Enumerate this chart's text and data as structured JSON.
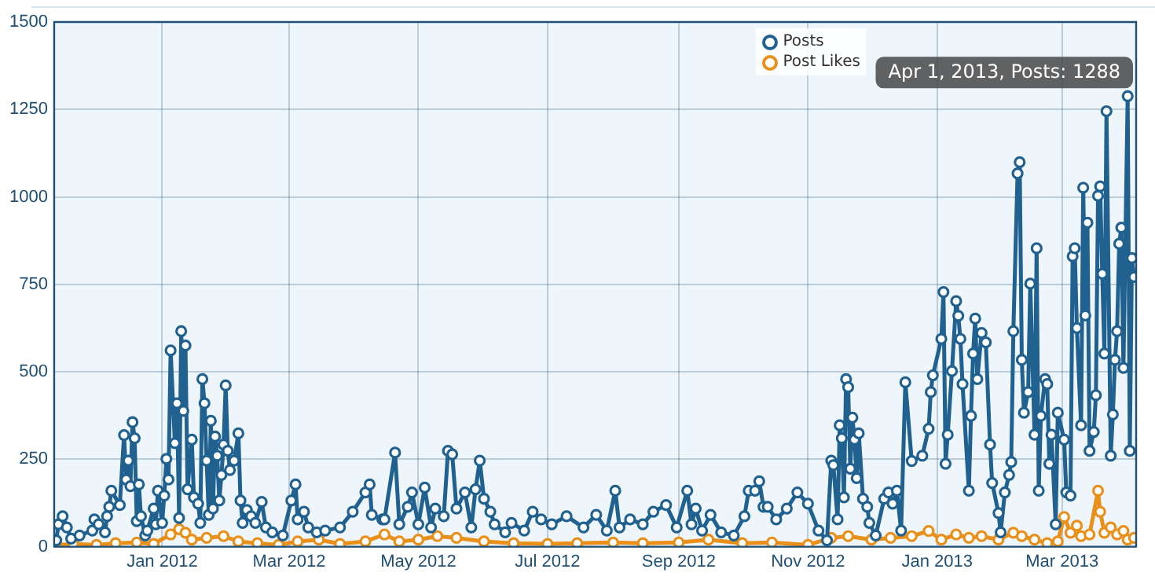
{
  "chart_data": {
    "type": "line",
    "xlim": [
      "2011-11-11",
      "2013-04-05"
    ],
    "xticks": [
      {
        "value": "2012-01-01",
        "label": "Jan 2012"
      },
      {
        "value": "2012-03-01",
        "label": "Mar 2012"
      },
      {
        "value": "2012-05-01",
        "label": "May 2012"
      },
      {
        "value": "2012-07-01",
        "label": "Jul 2012"
      },
      {
        "value": "2012-09-01",
        "label": "Sep 2012"
      },
      {
        "value": "2012-11-01",
        "label": "Nov 2012"
      },
      {
        "value": "2013-01-01",
        "label": "Jan 2013"
      },
      {
        "value": "2013-03-01",
        "label": "Mar 2013"
      }
    ],
    "ylim": [
      0,
      1500
    ],
    "yticks": [
      0,
      250,
      500,
      750,
      1000,
      1250,
      1500
    ],
    "grid": true,
    "legend": "top right",
    "marker": "circle",
    "annotations": [
      {
        "text": "Apr 1, 2013, Posts: 1288",
        "x": "2013-04-01",
        "y": 1288
      }
    ],
    "series": [
      {
        "name": "Posts",
        "color": "#21618f",
        "x": [
          "2011-11-12",
          "2011-11-13",
          "2011-11-15",
          "2011-11-17",
          "2011-11-19",
          "2011-11-23",
          "2011-11-29",
          "2011-11-30",
          "2011-12-02",
          "2011-12-05",
          "2011-12-06",
          "2011-12-07",
          "2011-12-08",
          "2011-12-12",
          "2011-12-14",
          "2011-12-15",
          "2011-12-16",
          "2011-12-17",
          "2011-12-18",
          "2011-12-19",
          "2011-12-20",
          "2011-12-21",
          "2011-12-22",
          "2011-12-24",
          "2011-12-25",
          "2011-12-28",
          "2011-12-29",
          "2011-12-30",
          "2012-01-01",
          "2012-01-02",
          "2012-01-03",
          "2012-01-04",
          "2012-01-05",
          "2012-01-07",
          "2012-01-08",
          "2012-01-09",
          "2012-01-10",
          "2012-01-11",
          "2012-01-12",
          "2012-01-13",
          "2012-01-15",
          "2012-01-16",
          "2012-01-18",
          "2012-01-19",
          "2012-01-20",
          "2012-01-21",
          "2012-01-22",
          "2012-01-23",
          "2012-01-24",
          "2012-01-25",
          "2012-01-26",
          "2012-01-27",
          "2012-01-28",
          "2012-01-29",
          "2012-01-30",
          "2012-01-31",
          "2012-02-01",
          "2012-02-02",
          "2012-02-04",
          "2012-02-06",
          "2012-02-07",
          "2012-02-08",
          "2012-02-10",
          "2012-02-12",
          "2012-02-14",
          "2012-02-17",
          "2012-02-19",
          "2012-02-22",
          "2012-02-27",
          "2012-03-02",
          "2012-03-04",
          "2012-03-05",
          "2012-03-08",
          "2012-03-10",
          "2012-03-14",
          "2012-03-18",
          "2012-03-25",
          "2012-03-31",
          "2012-04-06",
          "2012-04-08",
          "2012-04-09",
          "2012-04-14",
          "2012-04-15",
          "2012-04-20",
          "2012-04-22",
          "2012-04-26",
          "2012-04-28",
          "2012-05-01",
          "2012-05-04",
          "2012-05-07",
          "2012-05-09",
          "2012-05-13",
          "2012-05-15",
          "2012-05-17",
          "2012-05-19",
          "2012-05-23",
          "2012-05-26",
          "2012-05-28",
          "2012-05-30",
          "2012-06-01",
          "2012-06-04",
          "2012-06-06",
          "2012-06-11",
          "2012-06-14",
          "2012-06-20",
          "2012-06-24",
          "2012-06-28",
          "2012-07-03",
          "2012-07-10",
          "2012-07-18",
          "2012-07-24",
          "2012-07-29",
          "2012-08-02",
          "2012-08-04",
          "2012-08-09",
          "2012-08-15",
          "2012-08-20",
          "2012-08-26",
          "2012-08-31",
          "2012-09-05",
          "2012-09-07",
          "2012-09-09",
          "2012-09-12",
          "2012-09-16",
          "2012-09-21",
          "2012-09-27",
          "2012-10-02",
          "2012-10-04",
          "2012-10-07",
          "2012-10-09",
          "2012-10-11",
          "2012-10-13",
          "2012-10-17",
          "2012-10-22",
          "2012-10-27",
          "2012-11-01",
          "2012-11-06",
          "2012-11-10",
          "2012-11-12",
          "2012-11-13",
          "2012-11-15",
          "2012-11-16",
          "2012-11-17",
          "2012-11-18",
          "2012-11-19",
          "2012-11-20",
          "2012-11-21",
          "2012-11-22",
          "2012-11-23",
          "2012-11-24",
          "2012-11-25",
          "2012-11-27",
          "2012-11-29",
          "2012-11-30",
          "2012-12-03",
          "2012-12-07",
          "2012-12-09",
          "2012-12-11",
          "2012-12-13",
          "2012-12-15",
          "2012-12-17",
          "2012-12-20",
          "2012-12-25",
          "2012-12-28",
          "2012-12-29",
          "2012-12-30",
          "2013-01-03",
          "2013-01-04",
          "2013-01-05",
          "2013-01-06",
          "2013-01-08",
          "2013-01-10",
          "2013-01-11",
          "2013-01-12",
          "2013-01-13",
          "2013-01-16",
          "2013-01-17",
          "2013-01-18",
          "2013-01-19",
          "2013-01-20",
          "2013-01-22",
          "2013-01-24",
          "2013-01-26",
          "2013-01-27",
          "2013-01-30",
          "2013-01-31",
          "2013-02-02",
          "2013-02-04",
          "2013-02-05",
          "2013-02-06",
          "2013-02-08",
          "2013-02-09",
          "2013-02-10",
          "2013-02-11",
          "2013-02-13",
          "2013-02-14",
          "2013-02-16",
          "2013-02-17",
          "2013-02-18",
          "2013-02-19",
          "2013-02-21",
          "2013-02-22",
          "2013-02-23",
          "2013-02-24",
          "2013-02-26",
          "2013-02-27",
          "2013-03-02",
          "2013-03-03",
          "2013-03-05",
          "2013-03-06",
          "2013-03-07",
          "2013-03-08",
          "2013-03-10",
          "2013-03-11",
          "2013-03-12",
          "2013-03-13",
          "2013-03-14",
          "2013-03-16",
          "2013-03-17",
          "2013-03-18",
          "2013-03-19",
          "2013-03-20",
          "2013-03-21",
          "2013-03-22",
          "2013-03-24",
          "2013-03-25",
          "2013-03-26",
          "2013-03-27",
          "2013-03-28",
          "2013-03-29",
          "2013-03-30",
          "2013-04-01",
          "2013-04-02",
          "2013-04-03",
          "2013-04-04"
        ],
        "values": [
          18,
          64,
          87,
          55,
          23,
          32,
          46,
          78,
          64,
          41,
          87,
          114,
          160,
          119,
          319,
          192,
          246,
          173,
          356,
          310,
          73,
          178,
          87,
          32,
          46,
          109,
          64,
          160,
          68,
          146,
          251,
          192,
          561,
          296,
          410,
          82,
          616,
          388,
          575,
          164,
          306,
          141,
          123,
          68,
          479,
          410,
          246,
          91,
          360,
          109,
          315,
          260,
          132,
          205,
          292,
          461,
          274,
          219,
          246,
          324,
          132,
          68,
          105,
          87,
          68,
          128,
          55,
          41,
          32,
          132,
          178,
          78,
          100,
          55,
          41,
          46,
          55,
          100,
          155,
          178,
          91,
          78,
          78,
          269,
          64,
          114,
          155,
          64,
          169,
          55,
          109,
          87,
          274,
          264,
          109,
          155,
          55,
          164,
          246,
          137,
          100,
          64,
          41,
          68,
          46,
          100,
          78,
          64,
          87,
          55,
          91,
          46,
          160,
          55,
          78,
          64,
          100,
          119,
          55,
          160,
          64,
          109,
          46,
          91,
          41,
          32,
          87,
          160,
          160,
          187,
          114,
          114,
          78,
          109,
          155,
          123,
          46,
          18,
          246,
          233,
          78,
          347,
          310,
          141,
          479,
          456,
          223,
          369,
          306,
          196,
          324,
          137,
          114,
          68,
          32,
          137,
          155,
          123,
          160,
          46,
          470,
          245,
          260,
          337,
          442,
          490,
          594,
          728,
          237,
          320,
          502,
          702,
          660,
          594,
          465,
          160,
          374,
          552,
          652,
          479,
          611,
          584,
          292,
          182,
          96,
          41,
          155,
          205,
          242,
          616,
          1067,
          1099,
          534,
          383,
          442,
          752,
          320,
          853,
          160,
          374,
          479,
          465,
          237,
          320,
          64,
          383,
          306,
          155,
          146,
          830,
          853,
          625,
          347,
          1026,
          661,
          926,
          274,
          328,
          433,
          1003,
          1030,
          780,
          552,
          1245,
          260,
          378,
          534,
          616,
          866,
          912,
          511,
          1288,
          274,
          825,
          771
        ]
      },
      {
        "name": "Post Likes",
        "color": "#e8901a",
        "x": [
          "2011-11-12",
          "2011-11-20",
          "2011-12-01",
          "2011-12-10",
          "2011-12-20",
          "2011-12-28",
          "2012-01-05",
          "2012-01-09",
          "2012-01-12",
          "2012-01-15",
          "2012-01-22",
          "2012-01-30",
          "2012-02-06",
          "2012-02-15",
          "2012-02-25",
          "2012-03-05",
          "2012-03-15",
          "2012-03-25",
          "2012-04-06",
          "2012-04-15",
          "2012-04-22",
          "2012-05-01",
          "2012-05-10",
          "2012-05-19",
          "2012-06-01",
          "2012-06-15",
          "2012-07-01",
          "2012-07-15",
          "2012-08-01",
          "2012-08-15",
          "2012-09-01",
          "2012-09-15",
          "2012-10-01",
          "2012-10-15",
          "2012-11-01",
          "2012-11-12",
          "2012-11-20",
          "2012-12-01",
          "2012-12-10",
          "2012-12-20",
          "2012-12-28",
          "2013-01-03",
          "2013-01-10",
          "2013-01-16",
          "2013-01-22",
          "2013-01-30",
          "2013-02-06",
          "2013-02-10",
          "2013-02-16",
          "2013-02-22",
          "2013-02-27",
          "2013-03-02",
          "2013-03-05",
          "2013-03-08",
          "2013-03-10",
          "2013-03-14",
          "2013-03-18",
          "2013-03-19",
          "2013-03-21",
          "2013-03-24",
          "2013-03-27",
          "2013-03-30",
          "2013-04-01",
          "2013-04-04"
        ],
        "values": [
          5,
          8,
          5,
          10,
          12,
          8,
          35,
          50,
          40,
          20,
          25,
          30,
          15,
          10,
          5,
          15,
          20,
          8,
          15,
          35,
          15,
          20,
          30,
          25,
          15,
          10,
          8,
          10,
          12,
          10,
          12,
          20,
          10,
          12,
          5,
          25,
          30,
          20,
          25,
          30,
          45,
          20,
          35,
          25,
          30,
          20,
          40,
          30,
          20,
          10,
          15,
          85,
          40,
          60,
          30,
          35,
          160,
          100,
          40,
          55,
          35,
          45,
          20,
          25
        ]
      }
    ]
  }
}
